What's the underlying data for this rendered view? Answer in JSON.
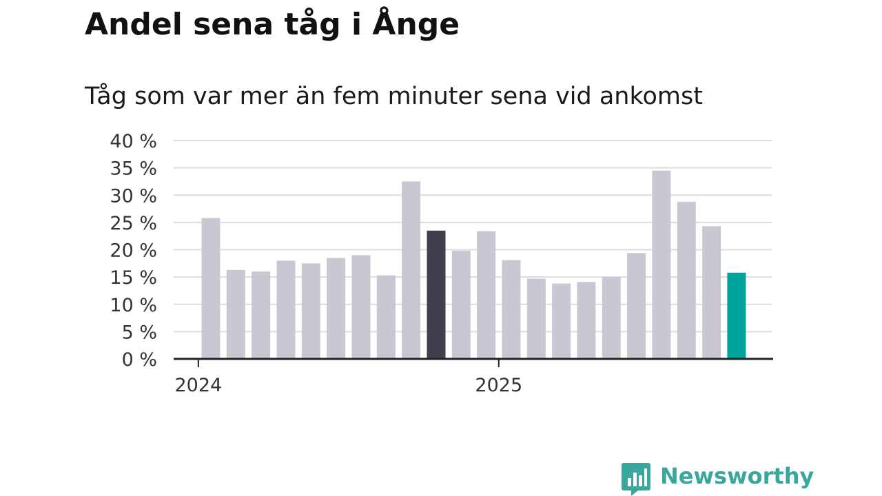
{
  "header": {
    "title": "Andel sena tåg i Ånge",
    "subtitle": "Tåg som var mer än fem minuter sena vid ankomst"
  },
  "chart_data": {
    "type": "bar",
    "title": "Andel sena tåg i Ånge",
    "subtitle": "Tåg som var mer än fem minuter sena vid ankomst",
    "xlabel": "",
    "ylabel": "",
    "x_tick_labels": [
      {
        "label": "2024",
        "index": 0
      },
      {
        "label": "2025",
        "index": 12
      }
    ],
    "categories": [
      "2024-01",
      "2024-02",
      "2024-03",
      "2024-04",
      "2024-05",
      "2024-06",
      "2024-07",
      "2024-08",
      "2024-09",
      "2024-10",
      "2024-11",
      "2024-12",
      "2025-01",
      "2025-02",
      "2025-03",
      "2025-04",
      "2025-05",
      "2025-06",
      "2025-07",
      "2025-08",
      "2025-09",
      "2025-10"
    ],
    "values": [
      25.8,
      16.3,
      16.0,
      18.0,
      17.5,
      18.5,
      19.0,
      15.3,
      32.5,
      23.5,
      19.8,
      23.4,
      18.1,
      14.7,
      13.8,
      14.1,
      15.0,
      19.4,
      34.5,
      28.8,
      24.3,
      15.8
    ],
    "y_ticks": [
      "0 %",
      "5 %",
      "10 %",
      "15 %",
      "20 %",
      "25 %",
      "30 %",
      "35 %",
      "40 %"
    ],
    "ylim": [
      0,
      40
    ],
    "grid": true,
    "legend": "none",
    "colors": {
      "default": "#c9c8d2",
      "highlight": "#403f4c",
      "latest": "#00a39a",
      "grid": "#dcdcdc",
      "axis": "#222222"
    },
    "highlight_index": 9,
    "latest_index": 21
  },
  "brand": {
    "name": "Newsworthy",
    "icon": "bar-chart-speech-bubble-icon",
    "color": "#3aa79c"
  }
}
